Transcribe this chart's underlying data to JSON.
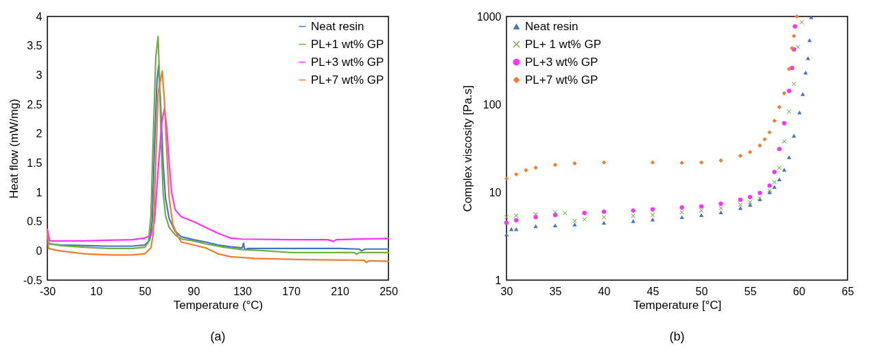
{
  "chart_data": [
    {
      "type": "line",
      "xlabel": "Temperature (°C)",
      "ylabel": "Heat flow (mW/mg)",
      "xlim": [
        -30,
        250
      ],
      "xticks": [
        -30,
        10,
        50,
        90,
        130,
        170,
        210,
        250
      ],
      "ylim": [
        -0.5,
        4
      ],
      "yticks": [
        -0.5,
        0,
        0.5,
        1,
        1.5,
        2,
        2.5,
        3,
        3.5,
        4
      ],
      "grid": false,
      "legend": "top right",
      "line_style": "solid",
      "annotations": [
        "(a)"
      ],
      "series": [
        {
          "name": "Neat resin",
          "color": "#4472c4",
          "x": [
            -30,
            -29,
            -20,
            0,
            20,
            40,
            50,
            54,
            56,
            58,
            60,
            61.4,
            63,
            65,
            67,
            70,
            75,
            80,
            90,
            100,
            110,
            120,
            130,
            131,
            132,
            135,
            170,
            210,
            226,
            228,
            231,
            250
          ],
          "values": [
            0.3,
            0.12,
            0.1,
            0.09,
            0.08,
            0.08,
            0.1,
            0.18,
            0.5,
            1.8,
            2.9,
            3.17,
            2.5,
            1.5,
            0.9,
            0.55,
            0.33,
            0.24,
            0.19,
            0.15,
            0.1,
            0.07,
            0.05,
            0.13,
            0.02,
            0.04,
            0.04,
            0.04,
            0.03,
            0,
            0.03,
            0.03
          ]
        },
        {
          "name": "PL+1 wt% GP",
          "color": "#70ad47",
          "x": [
            -30,
            -29,
            -20,
            0,
            20,
            40,
            50,
            53,
            55,
            57,
            59,
            60.9,
            62,
            63.5,
            65,
            67,
            70,
            75,
            80,
            90,
            100,
            115,
            130,
            150,
            170,
            210,
            222,
            224,
            226,
            250
          ],
          "values": [
            0.35,
            0.13,
            0.09,
            0.06,
            0.04,
            0.04,
            0.06,
            0.15,
            0.6,
            2,
            3.3,
            3.66,
            3,
            1.8,
            1,
            0.6,
            0.4,
            0.27,
            0.2,
            0.17,
            0.12,
            0.06,
            0.02,
            0,
            -0.03,
            -0.03,
            -0.03,
            -0.06,
            -0.03,
            -0.03
          ]
        },
        {
          "name": "PL+3 wt% GP",
          "color": "#ff33ff",
          "x": [
            -30,
            -28,
            -20,
            0,
            20,
            40,
            50,
            55,
            58,
            61,
            64,
            66.2,
            68,
            70,
            72,
            75,
            80,
            90,
            100,
            110,
            120,
            130,
            170,
            200,
            205,
            207,
            250
          ],
          "values": [
            0.37,
            0.17,
            0.17,
            0.17,
            0.18,
            0.19,
            0.22,
            0.26,
            0.5,
            1.4,
            2.2,
            2.44,
            2.1,
            1.5,
            1,
            0.7,
            0.58,
            0.5,
            0.4,
            0.3,
            0.22,
            0.2,
            0.19,
            0.19,
            0.16,
            0.19,
            0.21
          ]
        },
        {
          "name": "PL+7 wt% GP",
          "color": "#ed7d31",
          "x": [
            -30,
            -29,
            -20,
            0,
            20,
            40,
            50,
            55,
            57,
            59,
            61,
            64.3,
            66,
            68,
            70,
            73,
            77,
            80,
            90,
            100,
            110,
            120,
            140,
            180,
            230,
            232,
            234,
            250
          ],
          "values": [
            0.3,
            0.04,
            0,
            -0.05,
            -0.07,
            -0.07,
            -0.05,
            0.05,
            0.3,
            1.5,
            2.7,
            3.07,
            2.6,
            1.7,
            0.9,
            0.45,
            0.25,
            0.15,
            0.1,
            0.05,
            -0.05,
            -0.1,
            -0.13,
            -0.15,
            -0.16,
            -0.2,
            -0.17,
            -0.18
          ]
        }
      ]
    },
    {
      "type": "scatter",
      "xlabel": "Temperature [°C]",
      "ylabel": "Complex viscosity [Pa.s]",
      "xlim": [
        30,
        65
      ],
      "xticks": [
        30,
        35,
        40,
        45,
        50,
        55,
        60,
        65
      ],
      "ylim": [
        1,
        1000
      ],
      "yticks": [
        1,
        10,
        100,
        1000
      ],
      "log": "y",
      "grid": false,
      "legend": "top left",
      "annotations": [
        "(b)"
      ],
      "series": [
        {
          "name": "Neat resin",
          "color": "#4472c4",
          "marker": "triangle",
          "x": [
            30,
            30.5,
            31,
            33,
            35,
            37,
            40,
            43,
            45,
            48,
            50,
            52,
            54,
            55,
            56,
            57,
            57.5,
            58,
            58.5,
            59,
            59.5,
            60.07,
            60.4,
            60.7,
            60.94,
            61.1,
            61.27
          ],
          "values": [
            3.3,
            3.8,
            3.8,
            4.1,
            4.2,
            4.3,
            4.5,
            4.7,
            4.9,
            5.2,
            5.5,
            5.9,
            6.6,
            7.2,
            8.3,
            10,
            11.5,
            14,
            18,
            25,
            44,
            81,
            131,
            230,
            335,
            537,
            980
          ]
        },
        {
          "name": "PL+ 1 wt% GP",
          "color": "#70ad47",
          "marker": "cross",
          "x": [
            30,
            31,
            33,
            35,
            36,
            37,
            38,
            40,
            43,
            45,
            48,
            50,
            52,
            54,
            55,
            56,
            57,
            57.5,
            58,
            58.5,
            59,
            59.5,
            59.9,
            60.3
          ],
          "values": [
            5.2,
            5.4,
            5.6,
            5.9,
            5.8,
            4.7,
            4.9,
            5.2,
            5.4,
            5.5,
            5.9,
            6.2,
            6.6,
            7.2,
            7.7,
            8.6,
            10.5,
            13,
            19,
            38,
            83,
            171,
            448,
            860
          ]
        },
        {
          "name": "PL+3 wt% GP",
          "color": "#ff33ff",
          "marker": "circle",
          "x": [
            30,
            31,
            33,
            35,
            38,
            40,
            43,
            45,
            48,
            50,
            52,
            54,
            55,
            56,
            57,
            57.5,
            58,
            58.5,
            59,
            59.3,
            59.5,
            59.6
          ],
          "values": [
            4.5,
            4.8,
            5.2,
            5.5,
            5.8,
            6,
            6.2,
            6.4,
            6.7,
            6.9,
            7.4,
            8.2,
            8.8,
            9.8,
            11.9,
            17,
            31,
            61,
            142,
            260,
            422,
            770
          ]
        },
        {
          "name": "PL+7 wt% GP",
          "color": "#ed7d31",
          "marker": "diamond",
          "x": [
            30,
            31,
            32,
            33,
            35,
            37,
            40,
            45,
            48,
            50,
            52,
            54,
            55,
            56,
            56.5,
            57,
            57.5,
            58,
            58.5,
            59,
            59.3,
            59.5,
            59.8
          ],
          "values": [
            14.3,
            16,
            17.8,
            19,
            20.5,
            21.3,
            21.8,
            21.8,
            21.6,
            21.8,
            23,
            26,
            28.6,
            34,
            40,
            48,
            65,
            93,
            134,
            252,
            435,
            600,
            1000
          ]
        }
      ]
    }
  ]
}
